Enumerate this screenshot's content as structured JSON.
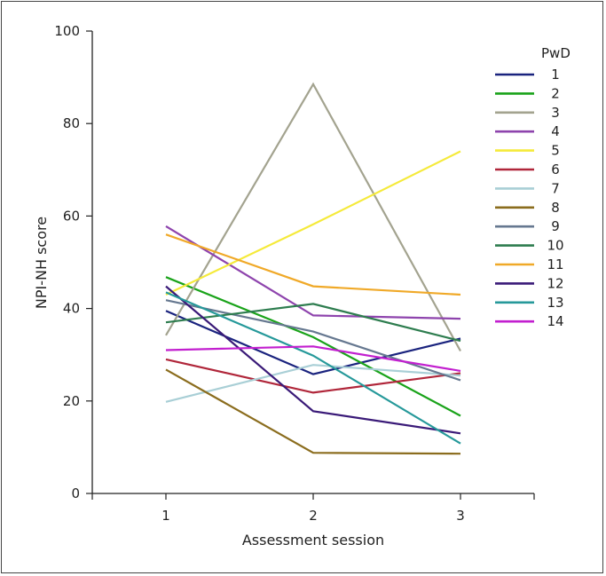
{
  "chart_data": {
    "type": "line",
    "title": "",
    "xlabel": "Assessment session",
    "ylabel": "NPI-NH score",
    "x": [
      1,
      2,
      3
    ],
    "xlim": [
      0.5,
      3.5
    ],
    "ylim": [
      0,
      100
    ],
    "yticks": [
      0,
      20,
      40,
      60,
      80,
      100
    ],
    "legend_title": "PwD",
    "legend_position": "right",
    "series": [
      {
        "name": "1",
        "color": "#1a237e",
        "values": [
          39.5,
          25.8,
          33.5
        ]
      },
      {
        "name": "2",
        "color": "#1aa31a",
        "values": [
          46.8,
          33.8,
          16.8
        ]
      },
      {
        "name": "3",
        "color": "#a3a38f",
        "values": [
          34.2,
          88.5,
          30.8
        ]
      },
      {
        "name": "4",
        "color": "#8e44ad",
        "values": [
          57.8,
          38.5,
          37.8
        ]
      },
      {
        "name": "5",
        "color": "#f5ea3a",
        "values": [
          43.0,
          58.2,
          74.0
        ]
      },
      {
        "name": "6",
        "color": "#b0263a",
        "values": [
          29.0,
          21.8,
          26.0
        ]
      },
      {
        "name": "7",
        "color": "#a9cfd6",
        "values": [
          19.8,
          27.8,
          25.5
        ]
      },
      {
        "name": "8",
        "color": "#8b6d1e",
        "values": [
          26.8,
          8.8,
          8.6
        ]
      },
      {
        "name": "9",
        "color": "#667890",
        "values": [
          41.8,
          35.0,
          24.5
        ]
      },
      {
        "name": "10",
        "color": "#2e7d4f",
        "values": [
          37.0,
          41.0,
          33.0
        ]
      },
      {
        "name": "11",
        "color": "#f0a928",
        "values": [
          56.0,
          44.8,
          43.0
        ]
      },
      {
        "name": "12",
        "color": "#3a1a78",
        "values": [
          44.8,
          17.8,
          13.0
        ]
      },
      {
        "name": "13",
        "color": "#26999a",
        "values": [
          43.5,
          29.8,
          10.8
        ]
      },
      {
        "name": "14",
        "color": "#c21fcf",
        "values": [
          31.0,
          31.8,
          26.5
        ]
      }
    ]
  }
}
